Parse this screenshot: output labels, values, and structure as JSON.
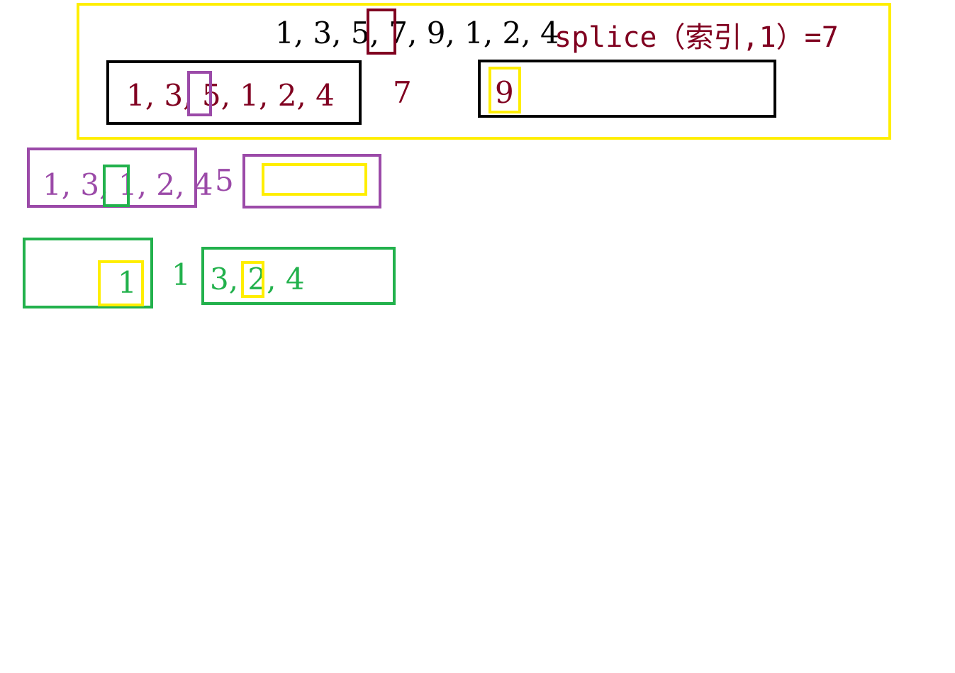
{
  "colors": {
    "yellow": "#ffee00",
    "maroon": "#800020",
    "purple": "#9b4aa8",
    "green": "#22b14c",
    "black": "#000000"
  },
  "level1": {
    "sequence": "1, 3, 5, 7, 9, 1, 2, 4",
    "note": "splice（索引,1）=7"
  },
  "level2": {
    "left_sequence": "1, 3, 5, 1, 2, 4",
    "pivot": "7",
    "right_sequence": "9"
  },
  "level3": {
    "left_sequence": "1, 3, 1, 2, 4",
    "pivot": "5",
    "right_sequence": ""
  },
  "level4": {
    "left_sequence": "1",
    "pivot": "1",
    "right_sequence": "3, 2, 4"
  }
}
